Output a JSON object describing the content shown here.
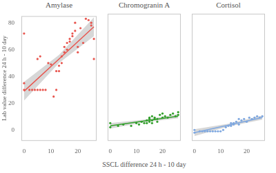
{
  "chart_data": [
    {
      "type": "scatter",
      "title": "Amylase",
      "ylabel": "Lab value difference 24 h - 10 day",
      "color": "#e8554e",
      "marker": "circle",
      "grid": false,
      "tick_labels": true,
      "xlim": [
        -1,
        27
      ],
      "xticks": [
        0,
        10,
        20
      ],
      "ylim": [
        -8,
        85
      ],
      "yticks": [
        0,
        20,
        40,
        60,
        80
      ],
      "x": [
        0,
        0,
        0,
        2,
        3,
        4,
        5,
        6,
        7,
        8,
        5,
        6,
        9,
        10,
        11,
        12,
        12,
        13,
        13,
        14,
        14,
        15,
        15,
        16,
        16,
        17,
        17,
        18,
        18,
        19,
        19,
        20,
        20,
        21,
        22,
        23,
        24,
        25,
        25,
        26,
        26
      ],
      "values": [
        72,
        35,
        30,
        30,
        30,
        30,
        30,
        30,
        30,
        30,
        53,
        55,
        50,
        49,
        25,
        30,
        44,
        44,
        48,
        50,
        55,
        62,
        58,
        60,
        65,
        66,
        68,
        72,
        70,
        74,
        80,
        58,
        62,
        76,
        65,
        83,
        82,
        80,
        78,
        53,
        68
      ],
      "fit": {
        "x": [
          0,
          13,
          26
        ],
        "values": [
          29,
          53,
          77
        ],
        "lower": [
          22,
          50,
          70
        ],
        "upper": [
          36,
          56,
          84
        ]
      }
    },
    {
      "type": "scatter",
      "title": "Chromogranin A",
      "xlabel": "SSCL difference 24 h - 10 day",
      "color": "#33a02c",
      "marker": "circle",
      "grid": false,
      "tick_labels": "x",
      "xlim": [
        -1,
        27
      ],
      "xticks": [
        0,
        10,
        20
      ],
      "ylim": [
        -8,
        85
      ],
      "yticks": [
        0,
        20,
        40,
        60,
        80
      ],
      "x": [
        0,
        0,
        3,
        5,
        8,
        10,
        11,
        12,
        13,
        14,
        14,
        15,
        15,
        15,
        16,
        16,
        17,
        17,
        18,
        19,
        20,
        20,
        21,
        22,
        23,
        24,
        25,
        26,
        26,
        18,
        16
      ],
      "values": [
        2,
        5,
        3,
        4,
        3,
        5,
        4,
        6,
        5,
        7,
        5,
        9,
        8,
        6,
        7,
        10,
        9,
        8,
        8,
        11,
        9,
        12,
        10,
        9,
        11,
        12,
        10,
        11,
        13,
        6,
        5
      ],
      "fit": {
        "x": [
          0,
          13,
          26
        ],
        "values": [
          3,
          6.5,
          10
        ],
        "lower": [
          1,
          5.5,
          8.5
        ],
        "upper": [
          5,
          7.5,
          11.5
        ]
      }
    },
    {
      "type": "scatter",
      "title": "Cortisol",
      "color": "#7fa8e0",
      "marker": "circle",
      "grid": false,
      "tick_labels": "x",
      "xlim": [
        -1,
        27
      ],
      "xticks": [
        0,
        10,
        20
      ],
      "ylim": [
        -8,
        85
      ],
      "yticks": [
        0,
        20,
        40,
        60,
        80
      ],
      "x": [
        0,
        0,
        2,
        3,
        4,
        5,
        6,
        7,
        8,
        9,
        10,
        11,
        12,
        13,
        14,
        14,
        15,
        15,
        16,
        17,
        17,
        18,
        19,
        20,
        21,
        22,
        23,
        24,
        25,
        26
      ],
      "values": [
        -2,
        0,
        -1,
        -1,
        -1,
        -1,
        -1,
        -1,
        -1,
        -1,
        -1,
        0,
        2,
        3,
        3,
        5,
        4,
        5,
        6,
        4,
        8,
        7,
        8,
        6,
        9,
        8,
        9,
        10,
        9,
        10
      ],
      "fit": {
        "x": [
          0,
          13,
          26
        ],
        "values": [
          -2,
          3.5,
          9
        ],
        "lower": [
          -4.5,
          2.5,
          7.5
        ],
        "upper": [
          0.5,
          4.5,
          10.5
        ]
      }
    }
  ]
}
